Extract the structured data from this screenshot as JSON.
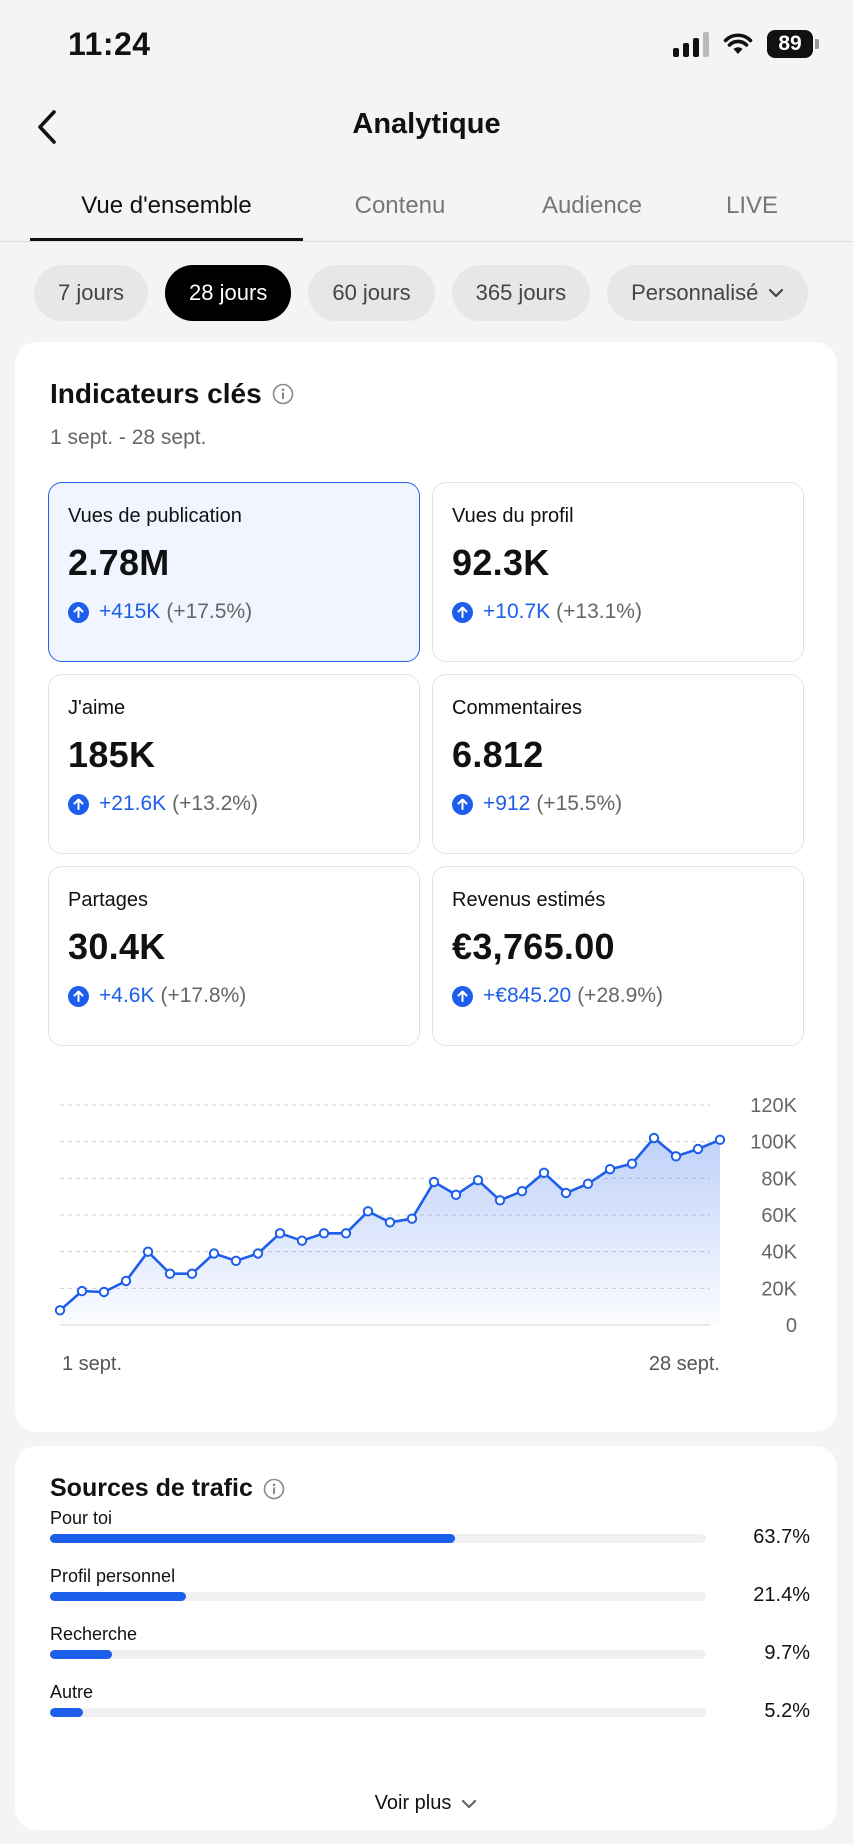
{
  "status_bar": {
    "time": "11:24",
    "battery": "89"
  },
  "header": {
    "title": "Analytique"
  },
  "tabs": [
    {
      "label": "Vue d'ensemble",
      "active": true
    },
    {
      "label": "Contenu"
    },
    {
      "label": "Audience"
    },
    {
      "label": "LIVE"
    }
  ],
  "ranges": [
    {
      "label": "7 jours"
    },
    {
      "label": "28 jours",
      "active": true
    },
    {
      "label": "60 jours"
    },
    {
      "label": "365 jours"
    },
    {
      "label": "Personnalisé"
    }
  ],
  "kpi_section": {
    "title": "Indicateurs clés",
    "date_range": "1 sept. - 28 sept.",
    "metrics": [
      {
        "label": "Vues de publication",
        "value": "2.78M",
        "delta": "+415K",
        "pct": "(+17.5%)",
        "selected": true
      },
      {
        "label": "Vues du profil",
        "value": "92.3K",
        "delta": "+10.7K",
        "pct": "(+13.1%)"
      },
      {
        "label": "J'aime",
        "value": "185K",
        "delta": "+21.6K",
        "pct": "(+13.2%)"
      },
      {
        "label": "Commentaires",
        "value": "6.812",
        "delta": "+912",
        "pct": "(+15.5%)"
      },
      {
        "label": "Partages",
        "value": "30.4K",
        "delta": "+4.6K",
        "pct": "(+17.8%)"
      },
      {
        "label": "Revenus estimés",
        "value": "€3,765.00",
        "delta": "+€845.20",
        "pct": "(+28.9%)"
      }
    ]
  },
  "chart_data": {
    "type": "area",
    "x_start_label": "1 sept.",
    "x_end_label": "28 sept.",
    "y_ticks": [
      "0",
      "20K",
      "40K",
      "60K",
      "80K",
      "100K",
      "120K"
    ],
    "ylim": [
      0,
      120000
    ],
    "grid": true,
    "x": [
      1,
      2,
      3,
      4,
      5,
      6,
      7,
      8,
      9,
      10,
      11,
      12,
      13,
      14,
      15,
      16,
      17,
      18,
      19,
      20,
      21,
      22,
      23,
      24,
      25,
      26,
      27,
      28,
      29,
      30,
      31
    ],
    "values": [
      8000,
      18500,
      18000,
      24000,
      40000,
      28000,
      28000,
      39000,
      35000,
      39000,
      50000,
      46000,
      50000,
      50000,
      62000,
      56000,
      58000,
      78000,
      71000,
      79000,
      68000,
      73000,
      83000,
      72000,
      77000,
      85000,
      88000,
      102000,
      92000,
      96000,
      101000
    ],
    "color": "#1d5eea"
  },
  "traffic": {
    "title": "Sources de trafic",
    "items": [
      {
        "label": "Pour toi",
        "pct": "63.7%",
        "value": 63.7
      },
      {
        "label": "Profil personnel",
        "pct": "21.4%",
        "value": 21.4
      },
      {
        "label": "Recherche",
        "pct": "9.7%",
        "value": 9.7
      },
      {
        "label": "Autre",
        "pct": "5.2%",
        "value": 5.2
      }
    ],
    "see_more": "Voir plus"
  },
  "colors": {
    "accent": "#1d5eea",
    "selected_bg": "#f1f5ff"
  }
}
